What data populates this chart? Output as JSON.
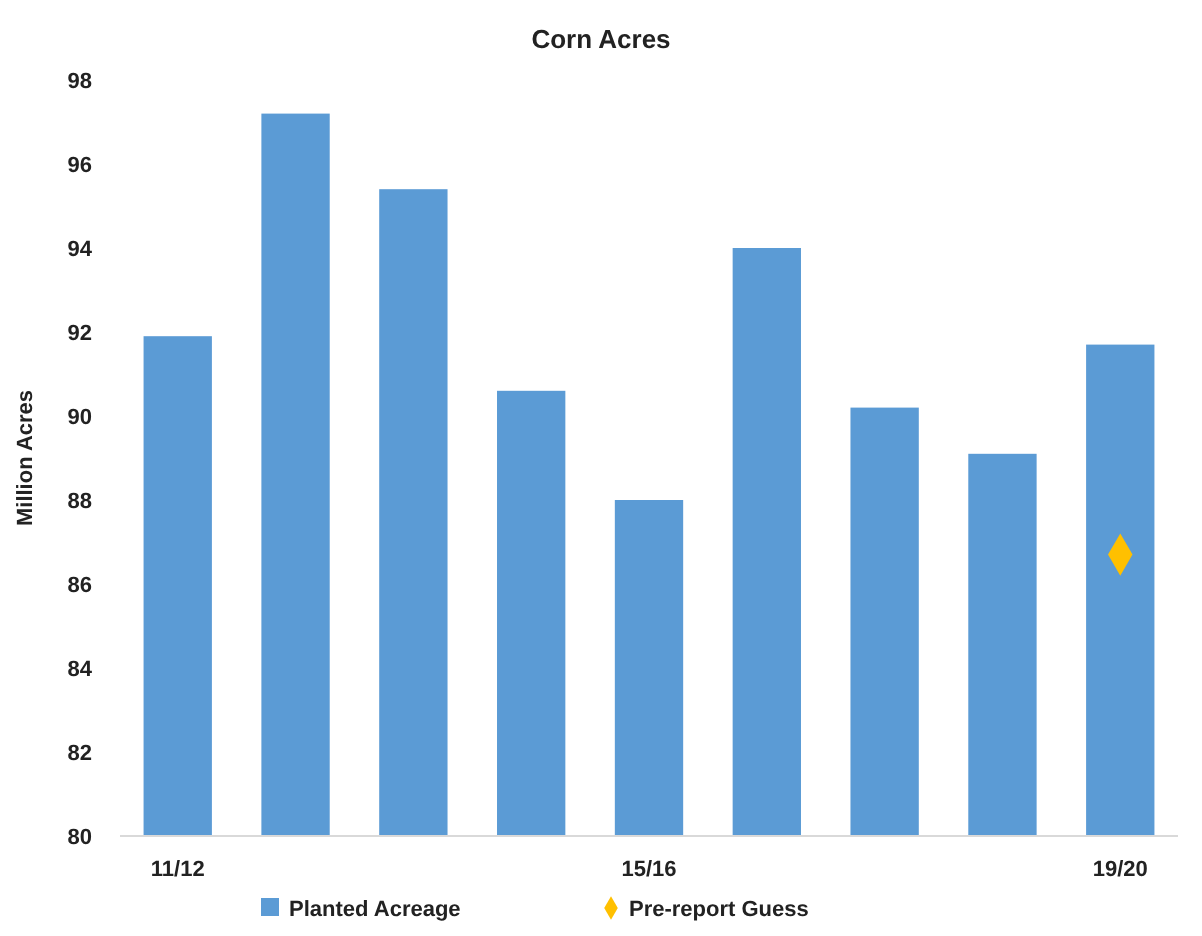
{
  "chart_data": {
    "type": "bar",
    "title": "Corn Acres",
    "ylabel": "Million Acres",
    "categories": [
      "11/12",
      null,
      null,
      null,
      "15/16",
      null,
      null,
      null,
      "19/20"
    ],
    "series": [
      {
        "name": "Planted Acreage",
        "color": "#5b9bd5",
        "values": [
          91.9,
          97.2,
          95.4,
          90.6,
          88.0,
          94.0,
          90.2,
          89.1,
          91.7
        ]
      },
      {
        "name": "Pre-report Guess",
        "type": "scatter",
        "color": "#ffc000",
        "marker": "diamond",
        "values": [
          null,
          null,
          null,
          null,
          null,
          null,
          null,
          null,
          86.7
        ]
      }
    ],
    "ylim": [
      80,
      98
    ],
    "yticks": [
      80,
      82,
      84,
      86,
      88,
      90,
      92,
      94,
      96,
      98
    ],
    "grid": false,
    "legend": "bottom"
  }
}
